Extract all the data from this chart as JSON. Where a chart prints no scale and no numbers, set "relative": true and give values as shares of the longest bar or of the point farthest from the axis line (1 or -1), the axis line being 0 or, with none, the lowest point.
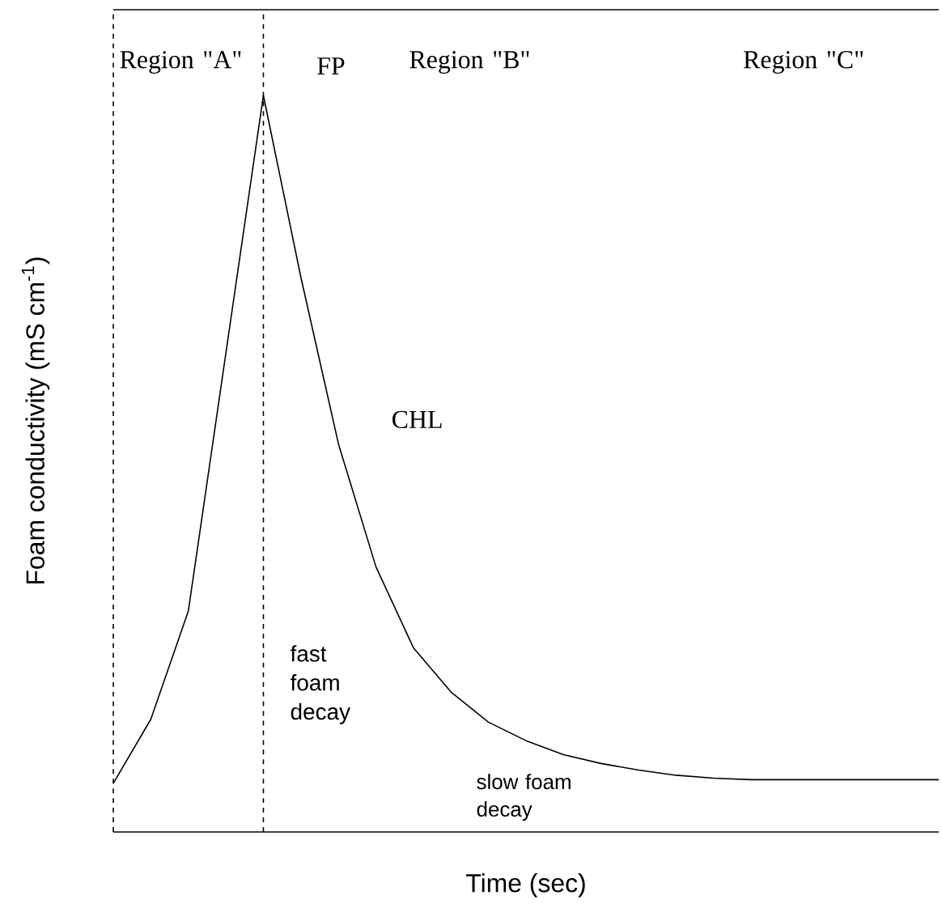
{
  "chart_data": {
    "type": "line",
    "relative": true,
    "xlabel": "Time (sec)",
    "ylabel": "Foam conductivity  (mS cm$^{-1}$)",
    "categories": [
      null,
      null,
      null,
      null,
      null,
      null,
      null,
      null,
      null,
      null,
      null,
      null,
      null,
      null,
      null,
      null,
      null,
      null,
      null,
      null,
      null,
      null,
      null
    ],
    "series": [
      {
        "color": "#000000",
        "values": [
          0.066,
          0.153,
          0.3,
          0.65,
          1.0,
          0.753,
          0.527,
          0.36,
          0.25,
          0.19,
          0.149,
          0.124,
          0.105,
          0.093,
          0.084,
          0.077,
          0.073,
          0.071,
          0.071,
          0.071,
          0.071,
          0.071,
          0.071
        ]
      }
    ],
    "marker": "none",
    "line_style": "solid",
    "annotations": [
      "Region \"A\"",
      "FP",
      "Region \"B\"",
      "Region \"C\"",
      "CHL",
      "fast foam decay",
      "slow foam decay"
    ]
  }
}
